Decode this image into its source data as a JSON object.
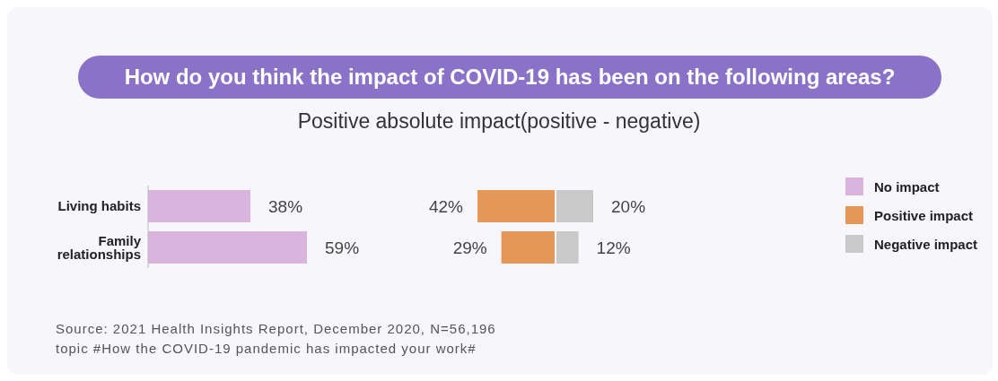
{
  "chart_data": [
    {
      "type": "bar",
      "orientation": "horizontal",
      "categories": [
        "Living habits",
        "Family relationships"
      ],
      "legend": "right",
      "series": [
        {
          "name": "No impact",
          "color": "#d9b4df",
          "values": [
            38,
            59
          ],
          "value_labels": [
            "38%",
            "59%"
          ]
        }
      ],
      "annotations": [
        "Source: 2021 Health Insights Report, December 2020, N=56,196",
        "topic #How the COVID-19 pandemic has impacted your work#"
      ]
    },
    {
      "type": "bar",
      "orientation": "horizontal",
      "title": "How do you think the impact of COVID-19 has been on the following areas?",
      "subtitle": "Positive absolute impact(positive - negative)",
      "legend": "right",
      "xlim": [
        42,
        0
      ],
      "series": [
        {
          "name": "Positive impact",
          "color": "#e49757",
          "values": [
            42,
            29
          ],
          "value_labels": [
            "42%",
            "29%"
          ]
        }
      ]
    },
    {
      "type": "bar",
      "orientation": "horizontal",
      "legend": "right",
      "series": [
        {
          "name": "Negative impact",
          "color": "#c9c9c9",
          "values": [
            20,
            12
          ],
          "value_labels": [
            "20%",
            "12%"
          ]
        }
      ]
    }
  ]
}
